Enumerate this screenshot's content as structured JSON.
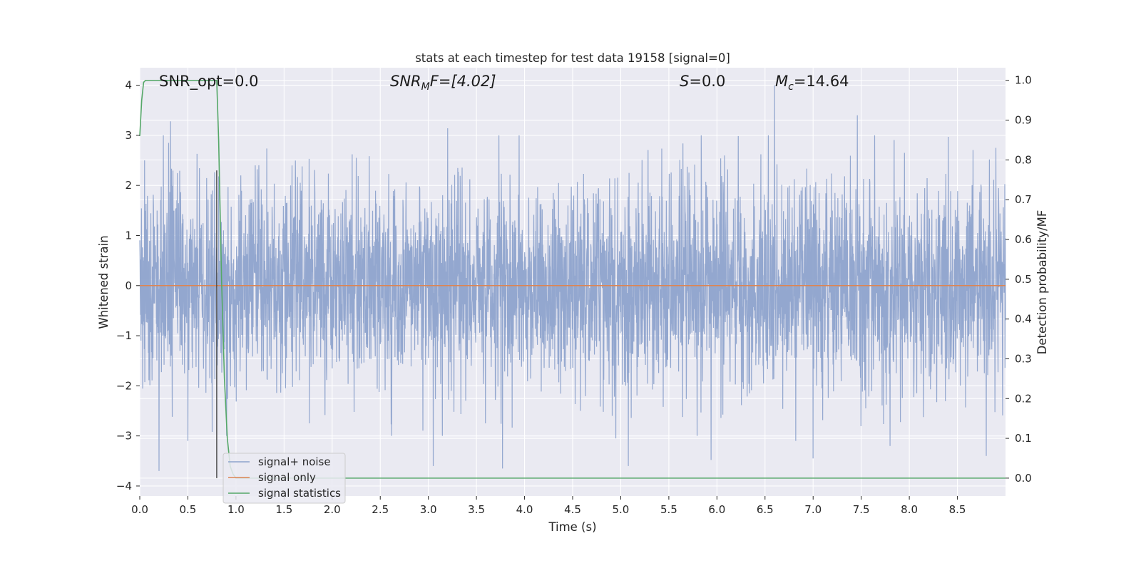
{
  "chart_data": {
    "type": "line",
    "title": "stats at each timestep for test data 19158 [signal=0]",
    "xlabel": "Time (s)",
    "ylabel_left": "Whitened strain",
    "ylabel_right": "Detection probability/MF",
    "xlim": [
      0,
      9
    ],
    "ylim_left": [
      -4.2,
      4.35
    ],
    "ylim_right": [
      -0.045,
      1.0318
    ],
    "x_ticks": [
      "0.0",
      "0.5",
      "1.0",
      "1.5",
      "2.0",
      "2.5",
      "3.0",
      "3.5",
      "4.0",
      "4.5",
      "5.0",
      "5.5",
      "6.0",
      "6.5",
      "7.0",
      "7.5",
      "8.0",
      "8.5"
    ],
    "y_ticks_left": [
      "4",
      "3",
      "2",
      "1",
      "0",
      "−1",
      "−2",
      "−3",
      "−4"
    ],
    "y_ticks_right": [
      "1.0",
      "0.9",
      "0.8",
      "0.7",
      "0.6",
      "0.5",
      "0.4",
      "0.3",
      "0.2",
      "0.1",
      "0.0"
    ],
    "grid": true,
    "legend_position": "lower-left",
    "colors": {
      "noise": "#8ea3cc",
      "signal": "#dd8452",
      "stats": "#55a868",
      "marker": "#444444",
      "axes_bg": "#eaeaf2",
      "grid": "#ffffff"
    },
    "annotations": {
      "snr_opt": "SNR_opt=0.0",
      "snr_mf_pre": "SNR",
      "snr_mf_sub": "M",
      "snr_mf_post": "F=[4.02]",
      "s_var": "S",
      "s_val": "=0.0",
      "mc_var": "M",
      "mc_sub": "c",
      "mc_val": "=14.64"
    },
    "marker_time": 0.8,
    "series": [
      {
        "name": "signal+ noise",
        "axis": "left",
        "kind": "noise",
        "sigma": 1.0,
        "seed": 19158,
        "peaks": [
          [
            0.05,
            2.5
          ],
          [
            0.2,
            -3.7
          ],
          [
            0.32,
            3.28
          ],
          [
            0.5,
            -3.1
          ],
          [
            0.82,
            2.18
          ],
          [
            1.05,
            2.2
          ],
          [
            2.25,
            2.55
          ],
          [
            3.05,
            -3.6
          ],
          [
            3.2,
            3.14
          ],
          [
            3.77,
            -3.65
          ],
          [
            4.95,
            -3.05
          ],
          [
            5.08,
            -3.6
          ],
          [
            5.94,
            -3.48
          ],
          [
            6.6,
            4.0
          ],
          [
            6.82,
            -3.1
          ],
          [
            7.0,
            -3.45
          ],
          [
            7.46,
            3.4
          ],
          [
            7.8,
            -3.2
          ],
          [
            7.95,
            2.65
          ],
          [
            8.8,
            -3.4
          ],
          [
            8.9,
            2.75
          ]
        ]
      },
      {
        "name": "signal only",
        "axis": "left",
        "kind": "line",
        "x": [
          0,
          9
        ],
        "y": [
          0,
          0
        ]
      },
      {
        "name": "signal statistics",
        "axis": "right",
        "kind": "line",
        "x": [
          0.0,
          0.02,
          0.04,
          0.06,
          0.1,
          0.2,
          0.4,
          0.6,
          0.78,
          0.8,
          0.82,
          0.85,
          0.88,
          0.91,
          0.94,
          0.97,
          1.0,
          2.0,
          3.0,
          4.0,
          5.0,
          6.0,
          7.0,
          8.0,
          9.0
        ],
        "y": [
          0.86,
          0.95,
          0.995,
          1.0,
          1.0,
          1.0,
          1.0,
          1.0,
          1.0,
          1.0,
          0.85,
          0.5,
          0.25,
          0.1,
          0.03,
          0.01,
          0.0,
          0.0,
          0.0,
          0.0,
          0.0,
          0.0,
          0.0,
          0.0,
          0.0
        ]
      }
    ]
  }
}
